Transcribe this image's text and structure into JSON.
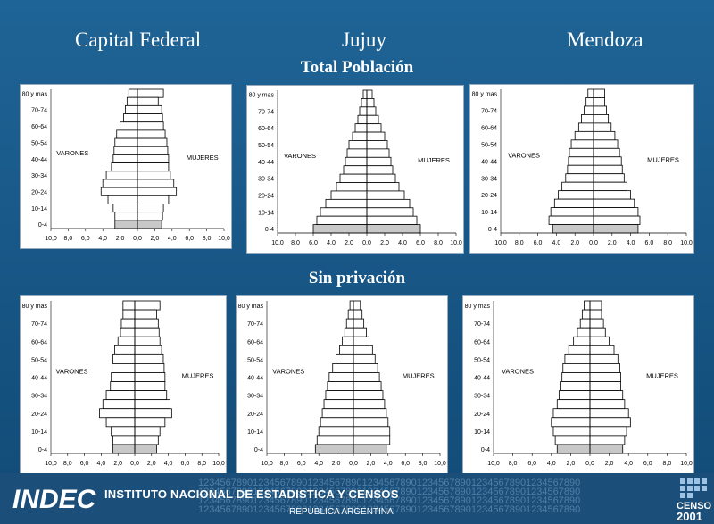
{
  "provinces": [
    "Capital Federal",
    "Jujuy",
    "Mendoza"
  ],
  "sections": [
    "Total Población",
    "Sin privación"
  ],
  "footer": {
    "institute": "INSTITUTO NACIONAL DE ESTADISTICA Y CENSOS",
    "country": "REPUBLICA ARGENTINA",
    "logo": "INDEC",
    "census": "CENSO",
    "census_year": "2001",
    "digits": "1234567890123456789012345678901234567890123456789012345678901234567890"
  },
  "chart_data": [
    {
      "type": "bar",
      "title": "Capital Federal - Total Población",
      "row_labels": [
        "80 y mas",
        "",
        "70-74",
        "",
        "60-64",
        "",
        "50-54",
        "",
        "40-44",
        "",
        "30-34",
        "",
        "20-24",
        "",
        "10-14",
        "",
        "0-4"
      ],
      "left_label": "VARONES",
      "right_label": "MUJERES",
      "x_ticks": [
        "10,0",
        "8,0",
        "6,0",
        "4,0",
        "2,0",
        "0,0",
        "2,0",
        "4,0",
        "6,0",
        "8,0",
        "10,0"
      ],
      "xlim": [
        -10,
        10
      ],
      "varones": [
        1.0,
        1.2,
        1.4,
        1.6,
        2.0,
        2.4,
        2.6,
        2.7,
        2.8,
        3.0,
        3.6,
        4.0,
        4.2,
        3.4,
        2.8,
        2.6,
        2.6
      ],
      "mujeres": [
        3.0,
        2.4,
        2.8,
        2.9,
        3.0,
        3.2,
        3.4,
        3.5,
        3.6,
        3.6,
        3.8,
        4.2,
        4.5,
        3.6,
        3.0,
        2.9,
        2.8
      ]
    },
    {
      "type": "bar",
      "title": "Jujuy - Total Población",
      "row_labels": [
        "80 y mas",
        "",
        "70-74",
        "",
        "60-64",
        "",
        "50-54",
        "",
        "40-44",
        "",
        "30-34",
        "",
        "20-24",
        "",
        "10-14",
        "",
        "0-4"
      ],
      "left_label": "VARONES",
      "right_label": "MUJERES",
      "x_ticks": [
        "10,0",
        "8,0",
        "6,0",
        "4,0",
        "2,0",
        "0,0",
        "2,0",
        "4,0",
        "6,0",
        "8,0",
        "10,0"
      ],
      "xlim": [
        -10,
        10
      ],
      "varones": [
        0.4,
        0.6,
        0.8,
        1.0,
        1.3,
        1.6,
        2.0,
        2.2,
        2.4,
        2.6,
        3.0,
        3.4,
        4.0,
        4.6,
        5.2,
        5.6,
        6.0
      ],
      "mujeres": [
        0.6,
        0.8,
        1.0,
        1.3,
        1.6,
        2.0,
        2.3,
        2.5,
        2.7,
        2.9,
        3.2,
        3.6,
        4.2,
        4.8,
        5.2,
        5.6,
        6.0
      ]
    },
    {
      "type": "bar",
      "title": "Mendoza - Total Población",
      "row_labels": [
        "80 y mas",
        "",
        "70-74",
        "",
        "60-64",
        "",
        "50-54",
        "",
        "40-44",
        "",
        "30-34",
        "",
        "20-24",
        "",
        "10-14",
        "",
        "0-4"
      ],
      "left_label": "VARONES",
      "right_label": "MUJERES",
      "x_ticks": [
        "10,0",
        "8,0",
        "6,0",
        "4,0",
        "2,0",
        "0,0",
        "2,0",
        "4,0",
        "6,0",
        "8,0",
        "10,0"
      ],
      "xlim": [
        -10,
        10
      ],
      "varones": [
        0.6,
        0.8,
        1.0,
        1.3,
        1.6,
        2.0,
        2.4,
        2.6,
        2.7,
        2.8,
        3.0,
        3.4,
        3.8,
        4.2,
        4.6,
        4.8,
        4.4
      ],
      "mujeres": [
        1.2,
        1.2,
        1.4,
        1.6,
        1.9,
        2.3,
        2.6,
        2.8,
        3.0,
        3.1,
        3.3,
        3.6,
        4.0,
        4.4,
        4.8,
        5.0,
        4.8
      ]
    },
    {
      "type": "bar",
      "title": "Capital Federal - Sin privación",
      "row_labels": [
        "80 y mas",
        "",
        "70-74",
        "",
        "60-64",
        "",
        "50-54",
        "",
        "40-44",
        "",
        "30-34",
        "",
        "20-24",
        "",
        "10-14",
        "",
        "0-4"
      ],
      "left_label": "VARONES",
      "right_label": "MUJERES",
      "x_ticks": [
        "10,0",
        "8,0",
        "6,0",
        "4,0",
        "2,0",
        "0,0",
        "2,0",
        "4,0",
        "6,0",
        "8,0",
        "10,0"
      ],
      "xlim": [
        -10,
        10
      ],
      "varones": [
        1.4,
        1.4,
        1.6,
        1.7,
        2.0,
        2.4,
        2.6,
        2.7,
        2.8,
        2.9,
        3.4,
        3.8,
        4.2,
        3.4,
        2.8,
        2.6,
        2.6
      ],
      "mujeres": [
        3.0,
        2.6,
        2.8,
        2.9,
        3.0,
        3.2,
        3.4,
        3.5,
        3.6,
        3.6,
        3.8,
        4.2,
        4.4,
        3.6,
        3.0,
        2.8,
        2.6
      ]
    },
    {
      "type": "bar",
      "title": "Jujuy - Sin privación",
      "row_labels": [
        "80 y mas",
        "",
        "70-74",
        "",
        "60-64",
        "",
        "50-54",
        "",
        "40-44",
        "",
        "30-34",
        "",
        "20-24",
        "",
        "10-14",
        "",
        "0-4"
      ],
      "left_label": "VARONES",
      "right_label": "MUJERES",
      "x_ticks": [
        "10,0",
        "8,0",
        "6,0",
        "4,0",
        "2,0",
        "0,0",
        "2,0",
        "4,0",
        "6,0",
        "8,0",
        "10,0"
      ],
      "xlim": [
        -10,
        10
      ],
      "varones": [
        0.4,
        0.6,
        0.8,
        1.0,
        1.3,
        1.6,
        2.0,
        2.4,
        2.8,
        3.0,
        3.2,
        3.4,
        3.6,
        3.8,
        4.0,
        4.2,
        4.4
      ],
      "mujeres": [
        0.8,
        1.0,
        1.2,
        1.5,
        1.8,
        2.2,
        2.5,
        2.8,
        3.0,
        3.2,
        3.4,
        3.6,
        3.8,
        4.0,
        4.2,
        4.2,
        3.8
      ]
    },
    {
      "type": "bar",
      "title": "Mendoza - Sin privación",
      "row_labels": [
        "80 y mas",
        "",
        "70-74",
        "",
        "60-64",
        "",
        "50-54",
        "",
        "40-44",
        "",
        "30-34",
        "",
        "20-24",
        "",
        "10-14",
        "",
        "0-4"
      ],
      "left_label": "VARONES",
      "right_label": "MUJERES",
      "x_ticks": [
        "10,0",
        "8,0",
        "6,0",
        "4,0",
        "2,0",
        "0,0",
        "2,0",
        "4,0",
        "6,0",
        "8,0",
        "10,0"
      ],
      "xlim": [
        -10,
        10
      ],
      "varones": [
        0.6,
        0.8,
        1.0,
        1.3,
        1.7,
        2.2,
        2.6,
        2.8,
        2.9,
        3.0,
        3.2,
        3.4,
        3.8,
        4.0,
        3.8,
        3.6,
        3.4
      ],
      "mujeres": [
        1.2,
        1.2,
        1.4,
        1.6,
        2.0,
        2.5,
        2.9,
        3.1,
        3.2,
        3.2,
        3.4,
        3.6,
        4.0,
        4.2,
        3.8,
        3.6,
        3.4
      ]
    }
  ]
}
